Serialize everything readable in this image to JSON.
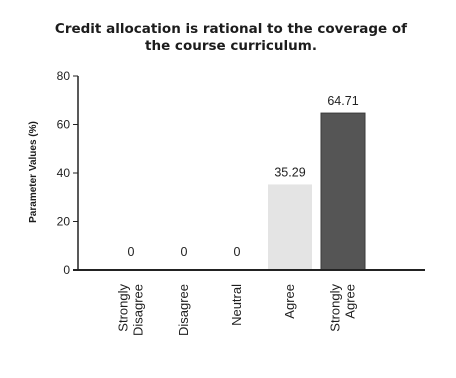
{
  "chart_data": {
    "type": "bar",
    "title_lines": [
      "Credit allocation is rational to the coverage of",
      "the course curriculum."
    ],
    "ylabel": "Parameter Values (%)",
    "xlabel": "",
    "ylim": [
      0,
      80
    ],
    "yticks": [
      0,
      20,
      40,
      60,
      80
    ],
    "grid": false,
    "legend": "none",
    "categories": [
      [
        "Strongly",
        "Disagree"
      ],
      [
        "Disagree"
      ],
      [
        "Neutral"
      ],
      [
        "Agree"
      ],
      [
        "Strongly",
        "Agree"
      ]
    ],
    "values": [
      0,
      0,
      0,
      35.29,
      64.71
    ],
    "data_labels": [
      "0",
      "0",
      "0",
      "35.29",
      "64.71"
    ],
    "bar_colors": [
      "#cfcfcf",
      "#cfcfcf",
      "#cfcfcf",
      "#e4e4e4",
      "#555555"
    ]
  }
}
